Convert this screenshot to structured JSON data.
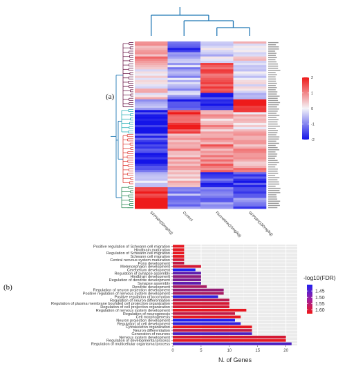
{
  "panel_labels": {
    "a": "(a)",
    "b": "(b)"
  },
  "chart_data": [
    {
      "type": "heatmap",
      "columns": [
        "SFPWH(50mg/kg)",
        "Control",
        "Fluoxetine(10mg/kg)",
        "SFPWH(150mg/kg)"
      ],
      "row_count": 78,
      "color_scale": {
        "min": -2,
        "max": 2,
        "ticks": [
          2,
          1,
          0,
          -1,
          -2
        ],
        "low": "#1414e8",
        "mid": "#f4f4f8",
        "high": "#ee1a1a"
      },
      "row_cluster_colors": [
        "#6b1a4a",
        "#2ab0b8",
        "#e0403a",
        "#2e8b57"
      ],
      "col_dendrogram_color": "#1f77b4"
    },
    {
      "type": "bar",
      "orientation": "horizontal",
      "categories": [
        "Positive regulation of Schwann cell migration",
        "Hindbrain maturation",
        "Regulation of Schwann cell migration",
        "Schwann cell migration",
        "Central nervous system maturation",
        "Pons development",
        "Metencephalon development",
        "Cerebellum development",
        "Regulation of synapse assembly",
        "Hindbrain development",
        "Regulation of dendrite development",
        "Synapse assembly",
        "Dendrite development",
        "Regulation of neuron projection development",
        "Positive regulation of nervous system development",
        "Positive regulation of locomotion",
        "Regulation of neuron differentiation",
        "Regulation of plasma membrane bounded cell projection organization",
        "Regulation of cell projection organization",
        "Regulation of nervous system development",
        "Regulation of neurogenesis",
        "Cell morphogenesis",
        "Neuron projection development",
        "Regulation of cell development",
        "Cytoskeleton organization",
        "Neuron differentiation",
        "Generation of neurons",
        "Nervous system development",
        "Regulation of developmental process",
        "Regulation of multicellular organismal process"
      ],
      "values": [
        2,
        2,
        2,
        2,
        2,
        2,
        5,
        4,
        5,
        5,
        5,
        5,
        6,
        9,
        9,
        8,
        10,
        10,
        10,
        13,
        11,
        12,
        11,
        12,
        14,
        14,
        14,
        20,
        20,
        21
      ],
      "neg_log10_fdr": [
        1.62,
        1.62,
        1.62,
        1.62,
        1.6,
        1.58,
        1.6,
        1.4,
        1.47,
        1.52,
        1.5,
        1.47,
        1.55,
        1.53,
        1.55,
        1.42,
        1.57,
        1.6,
        1.6,
        1.62,
        1.58,
        1.62,
        1.4,
        1.42,
        1.62,
        1.58,
        1.45,
        1.6,
        1.62,
        1.45
      ],
      "xlabel": "N. of Genes",
      "xlim": [
        0,
        22
      ],
      "xticks": [
        0,
        5,
        10,
        15,
        20
      ],
      "legend": {
        "title": "-log10(FDR)",
        "ticks": [
          1.45,
          1.5,
          1.55,
          1.6
        ],
        "range": [
          1.4,
          1.63
        ],
        "low": "#2020f0",
        "high": "#f01818",
        "placement": "right"
      },
      "grid": true
    }
  ]
}
